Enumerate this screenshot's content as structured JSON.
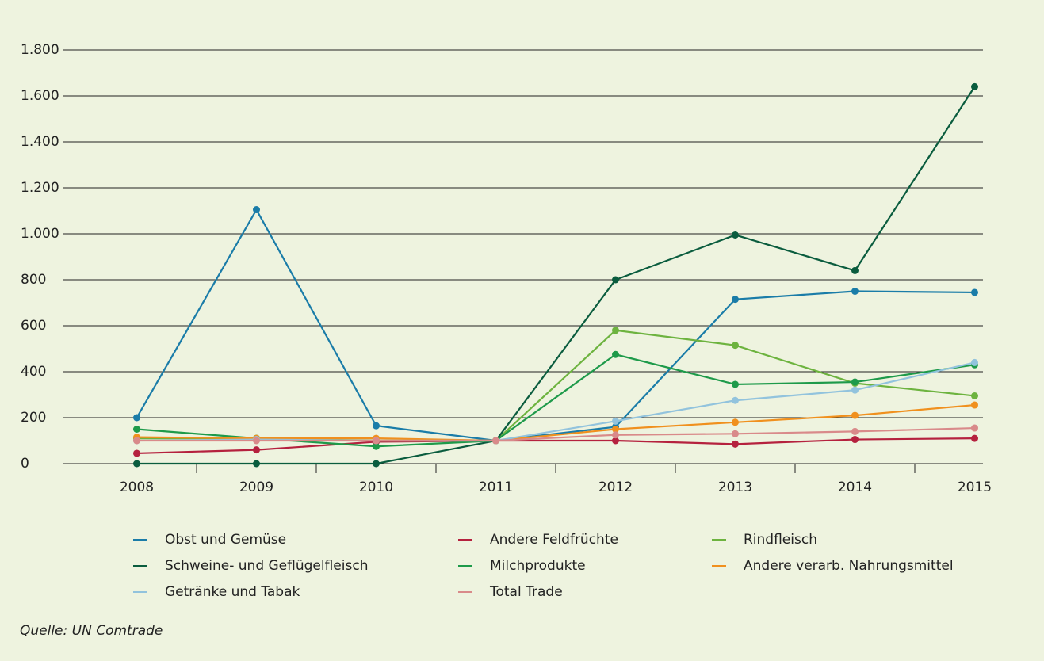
{
  "chart_data": {
    "type": "line",
    "source": "Quelle: UN Comtrade",
    "categories": [
      "2008",
      "2009",
      "2010",
      "2011",
      "2012",
      "2013",
      "2014",
      "2015"
    ],
    "ylim": [
      0,
      1800
    ],
    "yticks": [
      0,
      200,
      400,
      600,
      800,
      {
        "value": 1000,
        "label": "1.000"
      },
      {
        "value": 1200,
        "label": "1.200"
      },
      {
        "value": 1400,
        "label": "1.400"
      },
      {
        "value": 1600,
        "label": "1.600"
      },
      {
        "value": 1800,
        "label": "1.800"
      }
    ],
    "grid": true,
    "series": [
      {
        "name": "Obst und Gemüse",
        "color": "#1a7ca8",
        "values": [
          200,
          1105,
          165,
          100,
          160,
          715,
          750,
          745
        ]
      },
      {
        "name": "Andere Feldfrüchte",
        "color": "#b5213e",
        "values": [
          45,
          60,
          95,
          100,
          100,
          85,
          105,
          110
        ]
      },
      {
        "name": "Rindfleisch",
        "color": "#6db33f",
        "values": [
          110,
          110,
          100,
          100,
          580,
          515,
          350,
          295
        ]
      },
      {
        "name": "Schweine- und Geflügelfleisch",
        "color": "#0a5c3e",
        "values": [
          0,
          0,
          0,
          100,
          800,
          995,
          840,
          1640
        ]
      },
      {
        "name": "Milchprodukte",
        "color": "#1e9a4a",
        "values": [
          150,
          110,
          75,
          100,
          475,
          345,
          355,
          430
        ]
      },
      {
        "name": "Andere verarb. Nahrungsmittel",
        "color": "#f0901e",
        "values": [
          115,
          110,
          110,
          100,
          150,
          180,
          210,
          255
        ]
      },
      {
        "name": "Getränke und Tabak",
        "color": "#92c3dd",
        "values": [
          100,
          105,
          100,
          100,
          185,
          275,
          320,
          440
        ]
      },
      {
        "name": "Total Trade",
        "color": "#d98a8a",
        "values": [
          100,
          100,
          100,
          100,
          125,
          130,
          140,
          155
        ]
      }
    ]
  }
}
